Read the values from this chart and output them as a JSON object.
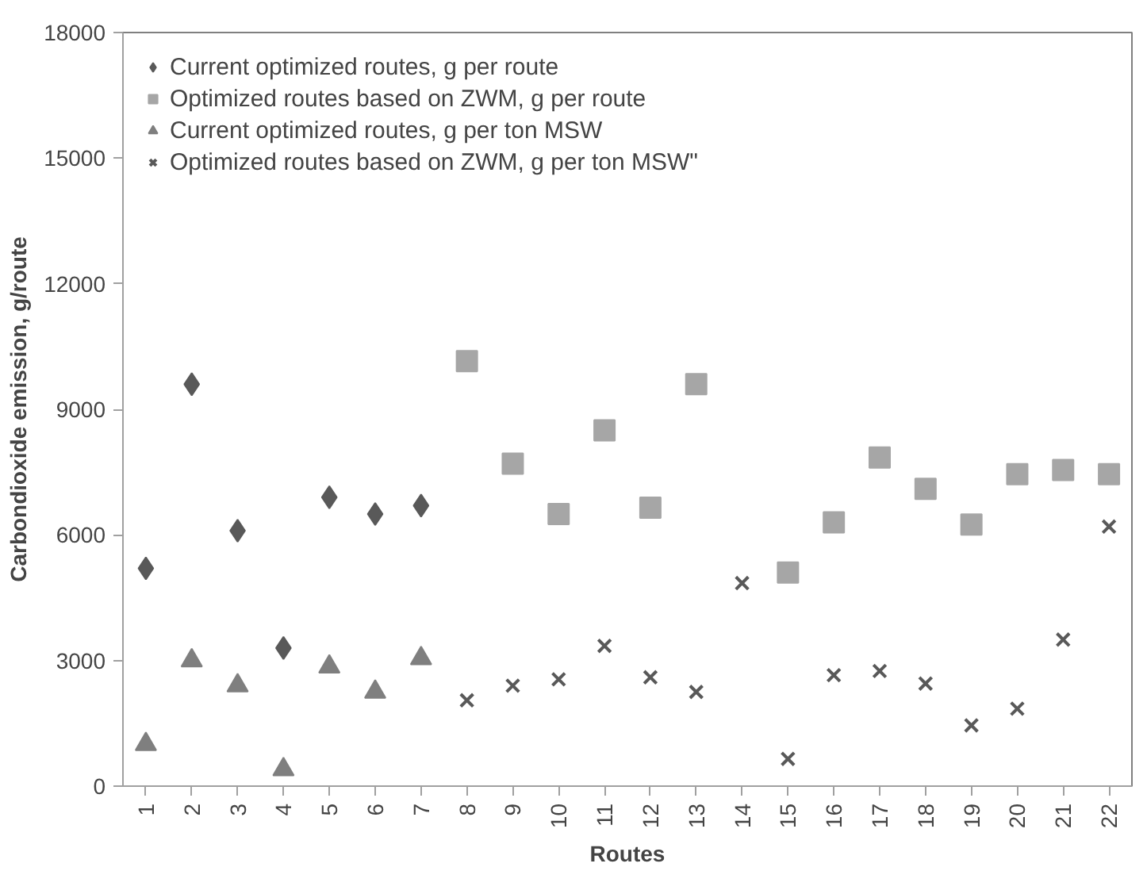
{
  "chart_data": {
    "type": "scatter",
    "xlabel": "Routes",
    "ylabel": "Carbondioxide emission, g/route",
    "categories": [
      "1",
      "2",
      "3",
      "4",
      "5",
      "6",
      "7",
      "8",
      "9",
      "10",
      "11",
      "12",
      "13",
      "14",
      "15",
      "16",
      "17",
      "18",
      "19",
      "20",
      "21",
      "22"
    ],
    "ylim": [
      0,
      18000
    ],
    "yticks": [
      0,
      3000,
      6000,
      9000,
      12000,
      15000,
      18000
    ],
    "grid": false,
    "legend": "top left",
    "series": [
      {
        "name": "Current optimized routes, g per route",
        "color": "#595959",
        "marker": "diamond",
        "values": [
          5200,
          9600,
          6100,
          3300,
          6900,
          6500,
          6700,
          null,
          null,
          null,
          null,
          null,
          null,
          null,
          null,
          null,
          null,
          null,
          null,
          null,
          null,
          null
        ]
      },
      {
        "name": "Optimized routes based on ZWM, g per route",
        "color": "#a6a6a6",
        "marker": "square",
        "values": [
          null,
          null,
          null,
          null,
          null,
          null,
          null,
          10150,
          7700,
          6500,
          8500,
          6650,
          9600,
          null,
          5100,
          6300,
          7850,
          7100,
          6250,
          7450,
          7550,
          7450
        ]
      },
      {
        "name": "Current optimized routes, g per ton MSW",
        "color": "#7f7f7f",
        "marker": "triangle",
        "values": [
          1000,
          3000,
          2400,
          400,
          2850,
          2250,
          3050,
          null,
          null,
          null,
          null,
          null,
          null,
          null,
          null,
          null,
          null,
          null,
          null,
          null,
          null,
          null
        ]
      },
      {
        "name": "Optimized routes based on ZWM, g per ton MSW\"",
        "color": "#595959",
        "marker": "cross",
        "values": [
          null,
          null,
          null,
          null,
          null,
          null,
          null,
          2050,
          2400,
          2550,
          3350,
          2600,
          2250,
          4850,
          650,
          2650,
          2750,
          2450,
          1450,
          1850,
          3500,
          6200
        ]
      }
    ]
  }
}
